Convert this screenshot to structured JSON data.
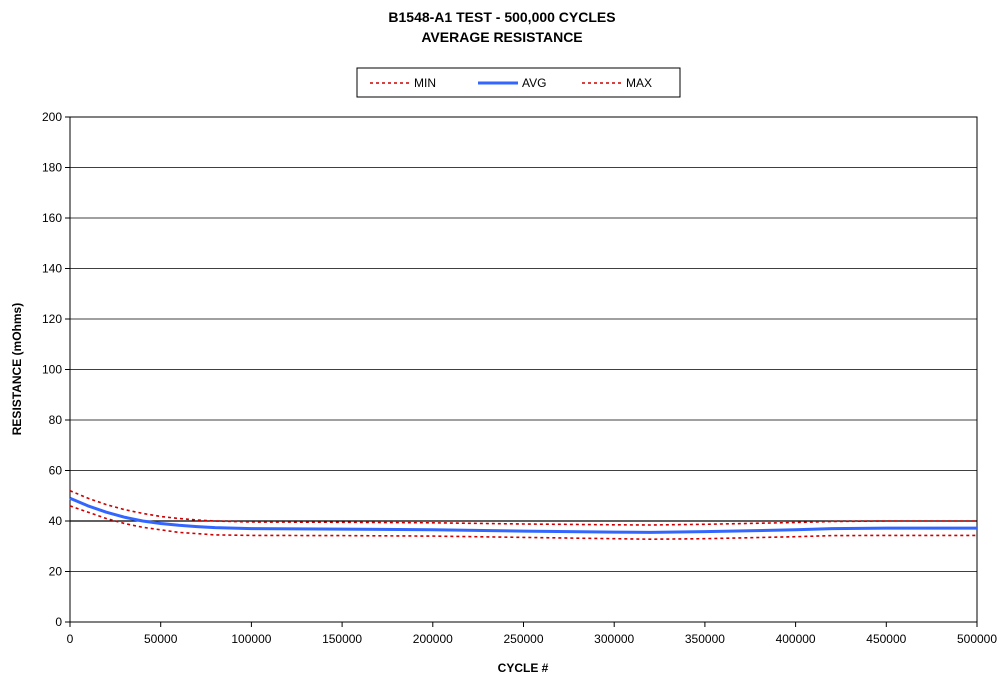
{
  "chart_data": {
    "type": "line",
    "title": "B1548-A1 TEST - 500,000 CYCLES",
    "subtitle": "AVERAGE RESISTANCE",
    "xlabel": "CYCLE #",
    "ylabel": "RESISTANCE (mOhms)",
    "xlim": [
      0,
      500000
    ],
    "ylim": [
      0,
      200
    ],
    "x_ticks": [
      "0",
      "50000",
      "100000",
      "150000",
      "200000",
      "250000",
      "300000",
      "350000",
      "400000",
      "450000",
      "500000"
    ],
    "y_ticks": [
      "0",
      "20",
      "40",
      "60",
      "80",
      "100",
      "120",
      "140",
      "160",
      "180",
      "200"
    ],
    "grid": "horizontal",
    "legend_position": "top",
    "x": [
      0,
      10000,
      20000,
      30000,
      40000,
      50000,
      60000,
      70000,
      80000,
      100000,
      150000,
      200000,
      250000,
      300000,
      320000,
      350000,
      400000,
      420000,
      450000,
      500000
    ],
    "series": [
      {
        "name": "MIN",
        "color": "#cc0000",
        "style": "dotted",
        "values": [
          46,
          43.5,
          41,
          39,
          37.5,
          36.5,
          35.5,
          35,
          34.5,
          34.3,
          34.2,
          34,
          33.5,
          33,
          32.8,
          33,
          33.8,
          34.2,
          34.3,
          34.3
        ]
      },
      {
        "name": "AVG",
        "color": "#3366ff",
        "style": "solid",
        "values": [
          49,
          46,
          43.5,
          41.5,
          40,
          39,
          38.3,
          37.8,
          37.4,
          37,
          36.8,
          36.5,
          36,
          35.6,
          35.5,
          35.8,
          36.5,
          37,
          37.2,
          37.2
        ]
      },
      {
        "name": "MAX",
        "color": "#cc0000",
        "style": "dotted",
        "values": [
          52,
          49,
          46.5,
          44.5,
          43,
          41.8,
          41,
          40.4,
          40,
          39.6,
          39.5,
          39.3,
          38.8,
          38.5,
          38.4,
          38.7,
          39.4,
          39.8,
          40,
          40
        ]
      }
    ],
    "reference_line": {
      "y": 40,
      "color": "#000000"
    }
  }
}
